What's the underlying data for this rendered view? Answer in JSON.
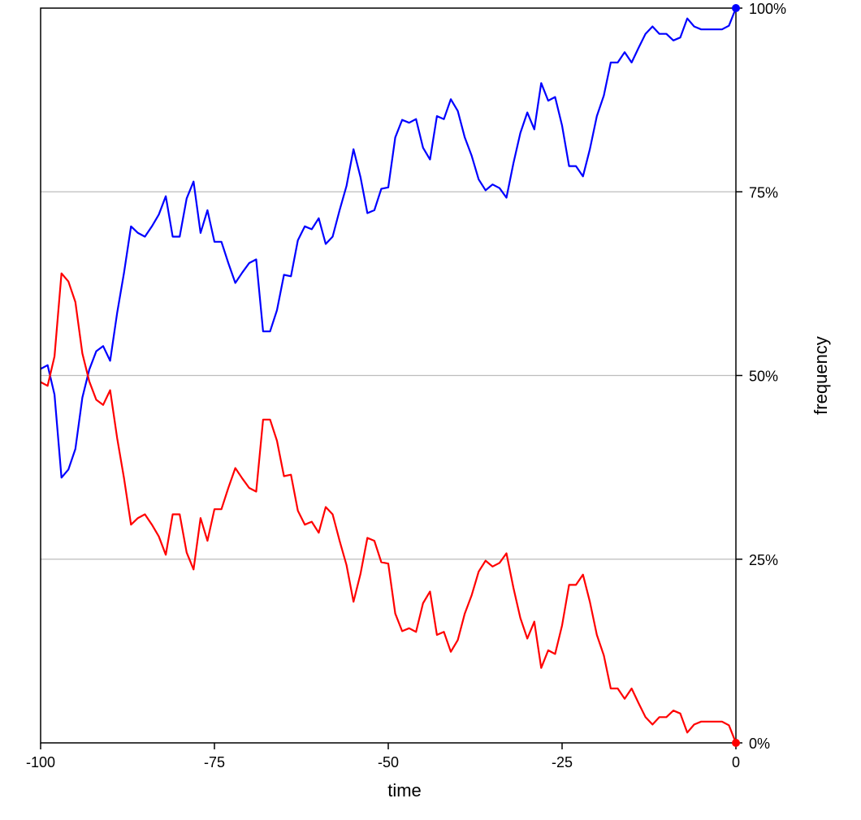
{
  "chart_data": {
    "type": "line",
    "xlabel": "time",
    "ylabel": "frequency",
    "xlim": [
      -100,
      0
    ],
    "ylim": [
      0,
      100
    ],
    "x_ticks": [
      -100,
      -75,
      -50,
      -25,
      0
    ],
    "x_tick_labels": [
      "-100",
      "-75",
      "-50",
      "-25",
      "0"
    ],
    "y_ticks": [
      0,
      25,
      50,
      75,
      100
    ],
    "y_tick_labels": [
      "0%",
      "25%",
      "50%",
      "75%",
      "100%"
    ],
    "y_axis_side": "right",
    "grid": "horizontal at 25%, 50%, 75%",
    "series": [
      {
        "color": "#0000ff",
        "end_marker": true,
        "points": [
          [
            -100,
            50.9
          ],
          [
            -99,
            51.4
          ],
          [
            -98,
            47.4
          ],
          [
            -97,
            36.1
          ],
          [
            -96,
            37.2
          ],
          [
            -95,
            40.0
          ],
          [
            -94,
            47.0
          ],
          [
            -93,
            50.8
          ],
          [
            -92,
            53.3
          ],
          [
            -91,
            54.0
          ],
          [
            -90,
            52.0
          ],
          [
            -89,
            58.5
          ],
          [
            -88,
            64.0
          ],
          [
            -87,
            70.3
          ],
          [
            -86,
            69.4
          ],
          [
            -85,
            68.9
          ],
          [
            -84,
            70.3
          ],
          [
            -83,
            71.9
          ],
          [
            -82,
            74.4
          ],
          [
            -81,
            68.9
          ],
          [
            -80,
            68.9
          ],
          [
            -79,
            74.1
          ],
          [
            -78,
            76.4
          ],
          [
            -77,
            69.4
          ],
          [
            -76,
            72.5
          ],
          [
            -75,
            68.2
          ],
          [
            -74,
            68.2
          ],
          [
            -73,
            65.3
          ],
          [
            -72,
            62.6
          ],
          [
            -71,
            64.0
          ],
          [
            -70,
            65.3
          ],
          [
            -69,
            65.8
          ],
          [
            -68,
            56.0
          ],
          [
            -67,
            56.0
          ],
          [
            -66,
            58.9
          ],
          [
            -65,
            63.7
          ],
          [
            -64,
            63.5
          ],
          [
            -63,
            68.4
          ],
          [
            -62,
            70.3
          ],
          [
            -61,
            69.9
          ],
          [
            -60,
            71.4
          ],
          [
            -59,
            67.9
          ],
          [
            -58,
            68.9
          ],
          [
            -57,
            72.5
          ],
          [
            -56,
            75.8
          ],
          [
            -55,
            80.8
          ],
          [
            -54,
            77.0
          ],
          [
            -53,
            72.1
          ],
          [
            -52,
            72.5
          ],
          [
            -51,
            75.4
          ],
          [
            -50,
            75.6
          ],
          [
            -49,
            82.4
          ],
          [
            -48,
            84.8
          ],
          [
            -47,
            84.4
          ],
          [
            -46,
            84.9
          ],
          [
            -45,
            81.0
          ],
          [
            -44,
            79.4
          ],
          [
            -43,
            85.3
          ],
          [
            -42,
            84.9
          ],
          [
            -41,
            87.6
          ],
          [
            -40,
            86.0
          ],
          [
            -39,
            82.4
          ],
          [
            -38,
            79.9
          ],
          [
            -37,
            76.7
          ],
          [
            -36,
            75.2
          ],
          [
            -35,
            76.0
          ],
          [
            -34,
            75.5
          ],
          [
            -33,
            74.2
          ],
          [
            -32,
            78.9
          ],
          [
            -31,
            83.0
          ],
          [
            -30,
            85.8
          ],
          [
            -29,
            83.5
          ],
          [
            -28,
            89.8
          ],
          [
            -27,
            87.4
          ],
          [
            -26,
            87.9
          ],
          [
            -25,
            84.0
          ],
          [
            -24,
            78.5
          ],
          [
            -23,
            78.5
          ],
          [
            -22,
            77.1
          ],
          [
            -21,
            80.8
          ],
          [
            -20,
            85.3
          ],
          [
            -19,
            88.1
          ],
          [
            -18,
            92.6
          ],
          [
            -17,
            92.6
          ],
          [
            -16,
            94.0
          ],
          [
            -15,
            92.6
          ],
          [
            -14,
            94.6
          ],
          [
            -13,
            96.5
          ],
          [
            -12,
            97.5
          ],
          [
            -11,
            96.5
          ],
          [
            -10,
            96.5
          ],
          [
            -9,
            95.6
          ],
          [
            -8,
            96.0
          ],
          [
            -7,
            98.6
          ],
          [
            -6,
            97.5
          ],
          [
            -5,
            97.1
          ],
          [
            -4,
            97.1
          ],
          [
            -3,
            97.1
          ],
          [
            -2,
            97.1
          ],
          [
            -1,
            97.6
          ],
          [
            0,
            100
          ]
        ]
      },
      {
        "color": "#ff0000",
        "end_marker": true,
        "points": [
          [
            -100,
            49.1
          ],
          [
            -99,
            48.6
          ],
          [
            -98,
            52.6
          ],
          [
            -97,
            63.9
          ],
          [
            -96,
            62.8
          ],
          [
            -95,
            60.0
          ],
          [
            -94,
            53.0
          ],
          [
            -93,
            49.2
          ],
          [
            -92,
            46.7
          ],
          [
            -91,
            46.0
          ],
          [
            -90,
            48.0
          ],
          [
            -89,
            41.5
          ],
          [
            -88,
            36.0
          ],
          [
            -87,
            29.7
          ],
          [
            -86,
            30.6
          ],
          [
            -85,
            31.1
          ],
          [
            -84,
            29.7
          ],
          [
            -83,
            28.1
          ],
          [
            -82,
            25.6
          ],
          [
            -81,
            31.1
          ],
          [
            -80,
            31.1
          ],
          [
            -79,
            25.9
          ],
          [
            -78,
            23.6
          ],
          [
            -77,
            30.6
          ],
          [
            -76,
            27.5
          ],
          [
            -75,
            31.8
          ],
          [
            -74,
            31.8
          ],
          [
            -73,
            34.7
          ],
          [
            -72,
            37.4
          ],
          [
            -71,
            36.0
          ],
          [
            -70,
            34.7
          ],
          [
            -69,
            34.2
          ],
          [
            -68,
            44.0
          ],
          [
            -67,
            44.0
          ],
          [
            -66,
            41.1
          ],
          [
            -65,
            36.3
          ],
          [
            -64,
            36.5
          ],
          [
            -63,
            31.6
          ],
          [
            -62,
            29.7
          ],
          [
            -61,
            30.1
          ],
          [
            -60,
            28.6
          ],
          [
            -59,
            32.1
          ],
          [
            -58,
            31.1
          ],
          [
            -57,
            27.5
          ],
          [
            -56,
            24.2
          ],
          [
            -55,
            19.2
          ],
          [
            -54,
            23.0
          ],
          [
            -53,
            27.9
          ],
          [
            -52,
            27.5
          ],
          [
            -51,
            24.6
          ],
          [
            -50,
            24.4
          ],
          [
            -49,
            17.6
          ],
          [
            -48,
            15.2
          ],
          [
            -47,
            15.6
          ],
          [
            -46,
            15.1
          ],
          [
            -45,
            19.0
          ],
          [
            -44,
            20.6
          ],
          [
            -43,
            14.7
          ],
          [
            -42,
            15.1
          ],
          [
            -41,
            12.4
          ],
          [
            -40,
            14.0
          ],
          [
            -39,
            17.6
          ],
          [
            -38,
            20.1
          ],
          [
            -37,
            23.3
          ],
          [
            -36,
            24.8
          ],
          [
            -35,
            24.0
          ],
          [
            -34,
            24.5
          ],
          [
            -33,
            25.8
          ],
          [
            -32,
            21.1
          ],
          [
            -31,
            17.0
          ],
          [
            -30,
            14.2
          ],
          [
            -29,
            16.5
          ],
          [
            -28,
            10.2
          ],
          [
            -27,
            12.6
          ],
          [
            -26,
            12.1
          ],
          [
            -25,
            16.0
          ],
          [
            -24,
            21.5
          ],
          [
            -23,
            21.5
          ],
          [
            -22,
            22.9
          ],
          [
            -21,
            19.2
          ],
          [
            -20,
            14.7
          ],
          [
            -19,
            11.9
          ],
          [
            -18,
            7.4
          ],
          [
            -17,
            7.4
          ],
          [
            -16,
            6.0
          ],
          [
            -15,
            7.4
          ],
          [
            -14,
            5.4
          ],
          [
            -13,
            3.5
          ],
          [
            -12,
            2.5
          ],
          [
            -11,
            3.5
          ],
          [
            -10,
            3.5
          ],
          [
            -9,
            4.4
          ],
          [
            -8,
            4.0
          ],
          [
            -7,
            1.4
          ],
          [
            -6,
            2.5
          ],
          [
            -5,
            2.9
          ],
          [
            -4,
            2.9
          ],
          [
            -3,
            2.9
          ],
          [
            -2,
            2.9
          ],
          [
            -1,
            2.4
          ],
          [
            0,
            0
          ]
        ]
      }
    ]
  }
}
